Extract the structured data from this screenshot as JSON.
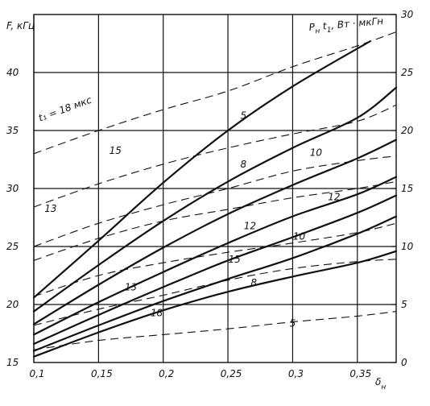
{
  "chart_data": {
    "type": "line",
    "x_axis": {
      "label": "δ",
      "label_sub": "н",
      "range": [
        0.1,
        0.38
      ],
      "ticks": [
        0.1,
        0.15,
        0.2,
        0.25,
        0.3,
        0.35
      ],
      "tick_labels": [
        "0,1",
        "0,15",
        "0,2",
        "0,25",
        "0,3",
        "0,35"
      ]
    },
    "y_axis_left": {
      "label": "F, кГц",
      "range": [
        15,
        45
      ],
      "ticks": [
        15,
        20,
        25,
        30,
        35,
        40
      ],
      "tick_labels": [
        "15",
        "20",
        "25",
        "30",
        "35",
        "40"
      ]
    },
    "y_axis_right": {
      "label": "Р",
      "label_sub_1": "н",
      "label_mid": "t",
      "label_sub_2": "1",
      "label_rest": ", Вт · мкГн",
      "range": [
        0,
        30
      ],
      "ticks": [
        0,
        5,
        10,
        15,
        20,
        25,
        30
      ],
      "tick_labels": [
        "0",
        "5",
        "10",
        "15",
        "20",
        "25",
        "30"
      ]
    },
    "grid": true,
    "series_solid": [
      {
        "axis": "left",
        "x": [
          0.1,
          0.15,
          0.2,
          0.25,
          0.3,
          0.36
        ],
        "y": [
          20.6,
          25.5,
          30.5,
          35.0,
          38.8,
          42.7
        ]
      },
      {
        "axis": "left",
        "x": [
          0.1,
          0.15,
          0.2,
          0.25,
          0.3,
          0.35,
          0.38
        ],
        "y": [
          19.4,
          23.4,
          27.2,
          30.6,
          33.5,
          36.1,
          38.7
        ]
      },
      {
        "axis": "left",
        "x": [
          0.1,
          0.15,
          0.2,
          0.25,
          0.3,
          0.35,
          0.38
        ],
        "y": [
          18.3,
          21.7,
          24.9,
          27.8,
          30.3,
          32.6,
          34.2
        ]
      },
      {
        "axis": "left",
        "x": [
          0.1,
          0.15,
          0.2,
          0.25,
          0.3,
          0.35,
          0.38
        ],
        "y": [
          17.4,
          20.2,
          22.8,
          25.3,
          27.6,
          29.5,
          31.0
        ]
      },
      {
        "axis": "left",
        "x": [
          0.1,
          0.15,
          0.2,
          0.25,
          0.3,
          0.35,
          0.38
        ],
        "y": [
          16.6,
          19.1,
          21.5,
          23.8,
          25.8,
          27.9,
          29.4
        ]
      },
      {
        "axis": "left",
        "x": [
          0.1,
          0.15,
          0.2,
          0.25,
          0.3,
          0.35,
          0.38
        ],
        "y": [
          16.0,
          18.2,
          20.3,
          22.2,
          24.0,
          26.1,
          27.6
        ]
      },
      {
        "axis": "left",
        "x": [
          0.1,
          0.15,
          0.2,
          0.25,
          0.3,
          0.35,
          0.38
        ],
        "y": [
          15.5,
          17.6,
          19.5,
          21.1,
          22.4,
          23.6,
          24.6
        ]
      }
    ],
    "series_dashed": [
      {
        "axis": "right",
        "x": [
          0.1,
          0.15,
          0.2,
          0.25,
          0.3,
          0.35,
          0.38
        ],
        "y": [
          18.0,
          20.0,
          21.8,
          23.4,
          25.5,
          27.3,
          28.5
        ]
      },
      {
        "axis": "right",
        "x": [
          0.1,
          0.15,
          0.2,
          0.25,
          0.3,
          0.35,
          0.38
        ],
        "y": [
          13.4,
          15.4,
          17.1,
          18.5,
          19.7,
          20.8,
          22.2
        ]
      },
      {
        "axis": "right",
        "x": [
          0.1,
          0.15,
          0.2,
          0.25,
          0.3,
          0.35,
          0.38
        ],
        "y": [
          10.0,
          12.0,
          13.6,
          15.0,
          16.5,
          17.4,
          17.8
        ]
      },
      {
        "axis": "right",
        "x": [
          0.1,
          0.15,
          0.2,
          0.25,
          0.3,
          0.35,
          0.38
        ],
        "y": [
          8.8,
          10.7,
          12.2,
          13.2,
          14.2,
          15.0,
          15.6
        ]
      },
      {
        "axis": "right",
        "x": [
          0.1,
          0.15,
          0.2,
          0.25,
          0.3,
          0.35,
          0.38
        ],
        "y": [
          5.7,
          7.5,
          8.6,
          9.5,
          10.3,
          11.2,
          12.0
        ]
      },
      {
        "axis": "right",
        "x": [
          0.1,
          0.15,
          0.2,
          0.25,
          0.3,
          0.35,
          0.38
        ],
        "y": [
          3.2,
          4.6,
          5.8,
          7.1,
          8.1,
          8.7,
          8.9
        ]
      },
      {
        "axis": "right",
        "x": [
          0.1,
          0.15,
          0.2,
          0.25,
          0.3,
          0.35,
          0.38
        ],
        "y": [
          1.1,
          1.9,
          2.4,
          2.9,
          3.5,
          4.0,
          4.4
        ]
      }
    ],
    "annotations": [
      {
        "text": "t₁ = 18 мкс",
        "x": 0.125,
        "y": 36.6,
        "axis": "left",
        "rotate": -20
      },
      {
        "text": "5",
        "x": 0.262,
        "y": 36.0,
        "axis": "left"
      },
      {
        "text": "8",
        "x": 0.262,
        "y": 31.8,
        "axis": "left"
      },
      {
        "text": "10",
        "x": 0.318,
        "y": 32.8,
        "axis": "left"
      },
      {
        "text": "12",
        "x": 0.332,
        "y": 29.0,
        "axis": "left"
      },
      {
        "text": "12",
        "x": 0.267,
        "y": 26.5,
        "axis": "left"
      },
      {
        "text": "10",
        "x": 0.305,
        "y": 25.6,
        "axis": "left"
      },
      {
        "text": "15",
        "x": 0.255,
        "y": 23.6,
        "axis": "left"
      },
      {
        "text": "8",
        "x": 0.27,
        "y": 21.6,
        "axis": "left"
      },
      {
        "text": "13",
        "x": 0.175,
        "y": 21.2,
        "axis": "left"
      },
      {
        "text": "18",
        "x": 0.195,
        "y": 19.0,
        "axis": "left"
      },
      {
        "text": "5",
        "x": 0.3,
        "y": 18.1,
        "axis": "left"
      },
      {
        "text": "15",
        "x": 0.163,
        "y": 33.0,
        "axis": "left"
      },
      {
        "text": "13",
        "x": 0.113,
        "y": 28.0,
        "axis": "left"
      }
    ]
  }
}
